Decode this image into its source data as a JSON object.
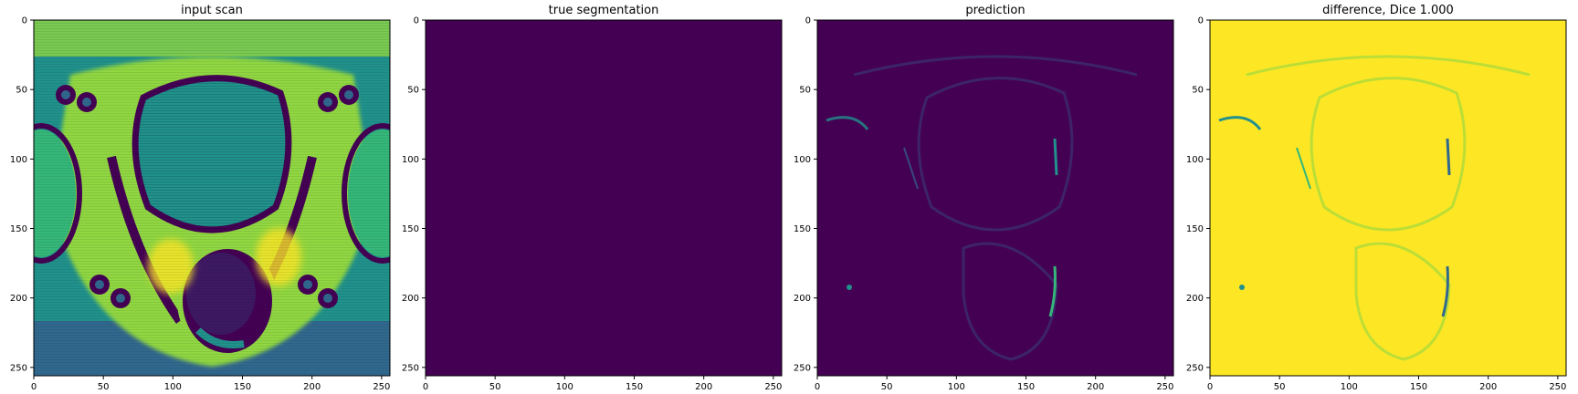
{
  "panels": [
    {
      "title": "input scan",
      "kind": "mri"
    },
    {
      "title": "true segmentation",
      "kind": "empty"
    },
    {
      "title": "prediction",
      "kind": "prediction"
    },
    {
      "title": "difference, Dice 1.000",
      "kind": "difference"
    }
  ],
  "axes": {
    "xlim": [
      0,
      256
    ],
    "ylim": [
      256,
      0
    ],
    "xticks": [
      0,
      50,
      100,
      150,
      200,
      250
    ],
    "yticks": [
      0,
      50,
      100,
      150,
      200,
      250
    ]
  },
  "colors": {
    "viridis_dark": "#440154",
    "viridis_blue": "#31688e",
    "viridis_teal": "#21918c",
    "viridis_green": "#35b779",
    "viridis_lime": "#90d743",
    "viridis_yellow": "#fde725"
  }
}
